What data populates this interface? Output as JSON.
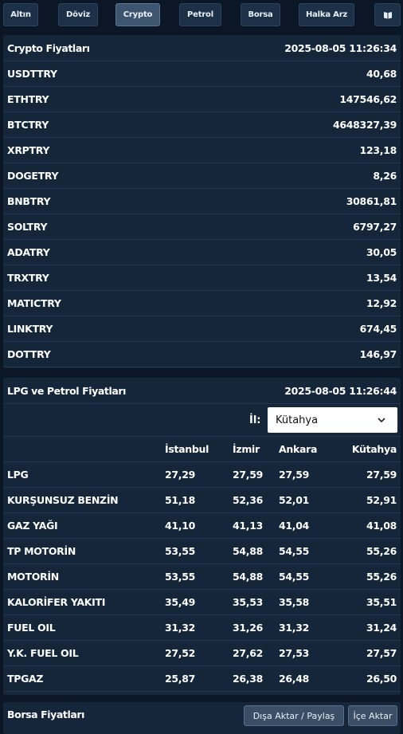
{
  "tabs": [
    {
      "label": "Altın"
    },
    {
      "label": "Döviz"
    },
    {
      "label": "Crypto"
    },
    {
      "label": "Petrol"
    },
    {
      "label": "Borsa"
    },
    {
      "label": "Halka Arz"
    }
  ],
  "crypto": {
    "title": "Crypto Fiyatları",
    "timestamp": "2025-08-05 11:26:34",
    "rows": [
      {
        "symbol": "USDTTRY",
        "price": "40,68"
      },
      {
        "symbol": "ETHTRY",
        "price": "147546,62"
      },
      {
        "symbol": "BTCTRY",
        "price": "4648327,39"
      },
      {
        "symbol": "XRPTRY",
        "price": "123,18"
      },
      {
        "symbol": "DOGETRY",
        "price": "8,26"
      },
      {
        "symbol": "BNBTRY",
        "price": "30861,81"
      },
      {
        "symbol": "SOLTRY",
        "price": "6797,27"
      },
      {
        "symbol": "ADATRY",
        "price": "30,05"
      },
      {
        "symbol": "TRXTRY",
        "price": "13,54"
      },
      {
        "symbol": "MATICTRY",
        "price": "12,92"
      },
      {
        "symbol": "LINKTRY",
        "price": "674,45"
      },
      {
        "symbol": "DOTTRY",
        "price": "146,97"
      }
    ]
  },
  "petrol": {
    "title": "LPG ve Petrol Fiyatları",
    "timestamp": "2025-08-05 11:26:44",
    "city_label": "İl:",
    "city_selected": "Kütahya",
    "columns": [
      "İstanbul",
      "İzmir",
      "Ankara",
      "Kütahya"
    ],
    "rows": [
      {
        "name": "LPG",
        "values": [
          "27,29",
          "27,59",
          "27,59",
          "27,59"
        ]
      },
      {
        "name": "KURŞUNSUZ BENZİN",
        "values": [
          "51,18",
          "52,36",
          "52,01",
          "52,91"
        ]
      },
      {
        "name": "GAZ YAĞI",
        "values": [
          "41,10",
          "41,13",
          "41,04",
          "41,08"
        ]
      },
      {
        "name": "TP MOTORİN",
        "values": [
          "53,55",
          "54,88",
          "54,55",
          "55,26"
        ]
      },
      {
        "name": "MOTORİN",
        "values": [
          "53,55",
          "54,88",
          "54,55",
          "55,26"
        ]
      },
      {
        "name": "KALORİFER YAKITI",
        "values": [
          "35,49",
          "35,53",
          "35,58",
          "35,51"
        ]
      },
      {
        "name": "FUEL OIL",
        "values": [
          "31,32",
          "31,26",
          "31,32",
          "31,24"
        ]
      },
      {
        "name": "Y.K. FUEL OIL",
        "values": [
          "27,52",
          "27,62",
          "27,53",
          "27,57"
        ]
      },
      {
        "name": "TPGAZ",
        "values": [
          "25,87",
          "26,38",
          "26,48",
          "26,50"
        ]
      }
    ]
  },
  "borsa": {
    "title": "Borsa Fiyatları",
    "export_label": "Dışa Aktar / Paylaş",
    "import_label": "İçe Aktar"
  },
  "icons": {
    "menu": "book-icon"
  }
}
